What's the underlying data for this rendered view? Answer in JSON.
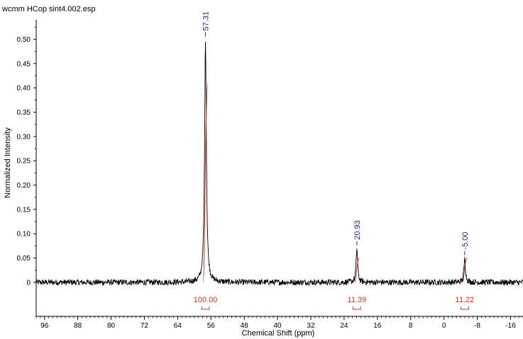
{
  "title": "wcmm HCop sint4.002.esp",
  "chart_data": {
    "type": "line",
    "title": "wcmm HCop sint4.002.esp",
    "xlabel": "Chemical Shift (ppm)",
    "ylabel": "Normalized Intensity",
    "x_reversed": true,
    "xlim": [
      98,
      -19
    ],
    "ylim": [
      -0.07,
      0.54
    ],
    "x_ticks": [
      96,
      88,
      80,
      72,
      64,
      56,
      48,
      40,
      32,
      24,
      16,
      8,
      0,
      -8,
      -16
    ],
    "x_tick_labels": [
      "96",
      "88",
      "80",
      "72",
      "64",
      "56",
      "48",
      "40",
      "32",
      "24",
      "16",
      "8",
      "0",
      "-8",
      "-16"
    ],
    "y_ticks": [
      0,
      0.05,
      0.1,
      0.15,
      0.2,
      0.25,
      0.3,
      0.35,
      0.4,
      0.45,
      0.5
    ],
    "y_tick_labels": [
      "0",
      "0.05",
      "0.10",
      "0.15",
      "0.20",
      "0.25",
      "0.30",
      "0.35",
      "0.40",
      "0.45",
      "0.50"
    ],
    "peaks": [
      {
        "x": 57.31,
        "y": 0.5,
        "label": "57.31"
      },
      {
        "x": 20.93,
        "y": 0.07,
        "label": "20.93"
      },
      {
        "x": -5.0,
        "y": 0.05,
        "label": "-5.00"
      }
    ],
    "integrals": [
      {
        "x": 57.31,
        "value": "100.00",
        "curve_top": 0.41
      },
      {
        "x": 20.93,
        "value": "11.39",
        "curve_top": 0.05
      },
      {
        "x": -5.0,
        "value": "11.22",
        "curve_top": 0.05
      }
    ],
    "noise_level": 0.006,
    "colors": {
      "spectrum": "#000000",
      "peak_label": "#1f2a8a",
      "integral": "#c0392b"
    }
  }
}
